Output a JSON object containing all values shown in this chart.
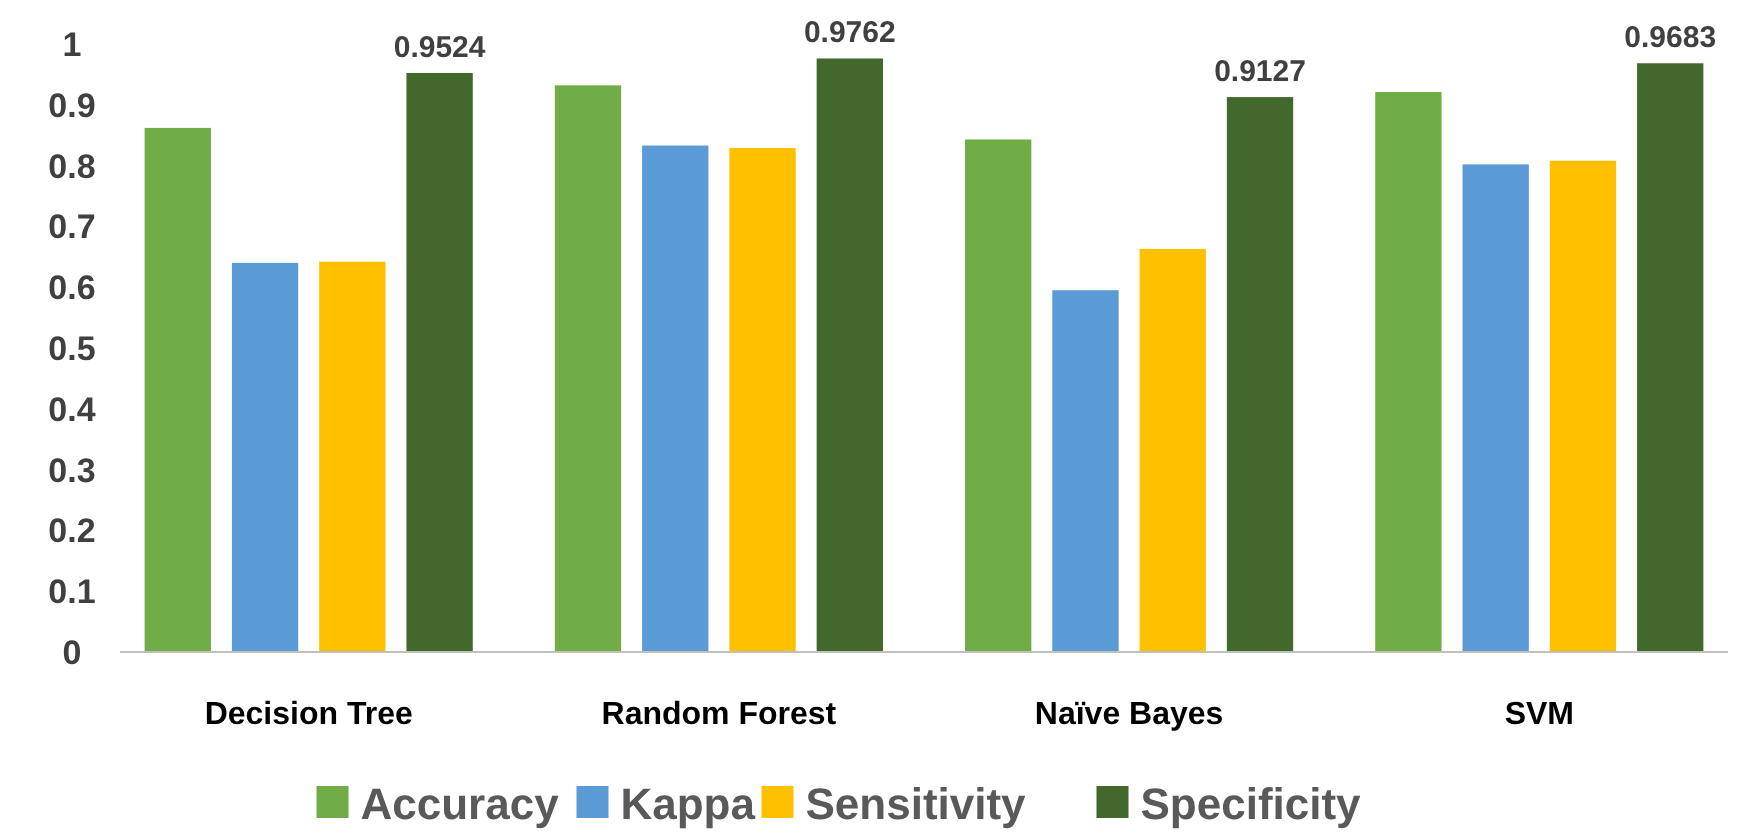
{
  "chart_data": {
    "type": "bar",
    "categories": [
      "Decision Tree",
      "Random Forest",
      "Naïve Bayes",
      "SVM"
    ],
    "series": [
      {
        "name": "Accuracy",
        "color": "#70ad47",
        "values": [
          0.862,
          0.932,
          0.843,
          0.921
        ]
      },
      {
        "name": "Kappa",
        "color": "#5b9bd5",
        "values": [
          0.64,
          0.833,
          0.595,
          0.802
        ]
      },
      {
        "name": "Sensitivity",
        "color": "#ffc000",
        "values": [
          0.642,
          0.829,
          0.663,
          0.808
        ]
      },
      {
        "name": "Specificity",
        "color": "#43682b",
        "values": [
          0.9524,
          0.9762,
          0.9127,
          0.9683
        ],
        "value_labels": [
          "0.9524",
          "0.9762",
          "0.9127",
          "0.9683"
        ]
      }
    ],
    "ylim": [
      0,
      1
    ],
    "yticks": [
      0,
      0.1,
      0.2,
      0.3,
      0.4,
      0.5,
      0.6,
      0.7,
      0.8,
      0.9,
      1
    ],
    "grid": false,
    "legend": "bottom"
  }
}
